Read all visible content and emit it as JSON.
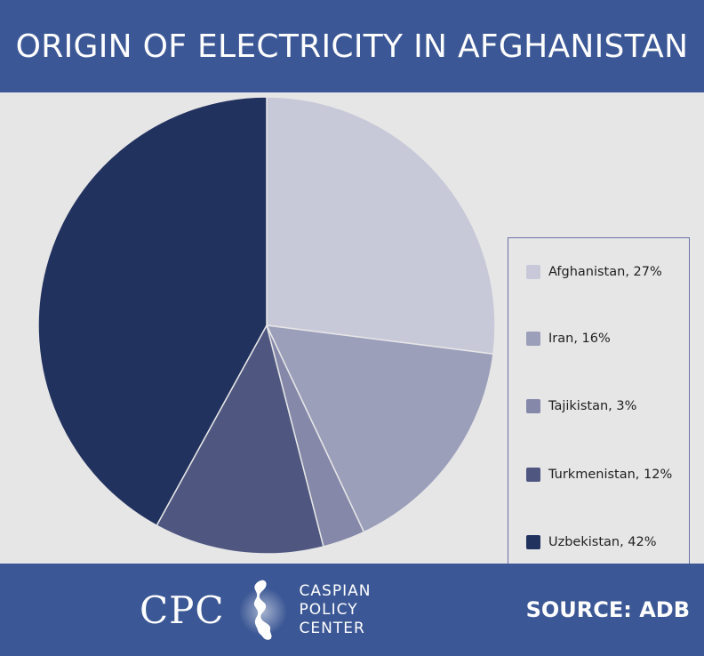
{
  "colors": {
    "header_bg": "#3b5795",
    "footer_bg": "#3b5795",
    "background": "#e6e6e7"
  },
  "header": {
    "title": "ORIGIN OF ELECTRICITY IN AFGHANISTAN"
  },
  "chart_data": {
    "type": "pie",
    "title": "ORIGIN OF ELECTRICITY IN AFGHANISTAN",
    "start_angle_deg": 0,
    "direction": "clockwise",
    "legend_position": "right",
    "slices": [
      {
        "label": "Afghanistan",
        "value": 27,
        "legend": "Afghanistan, 27%",
        "color": "#c8c9d8"
      },
      {
        "label": "Iran",
        "value": 16,
        "legend": "Iran, 16%",
        "color": "#9c9fba"
      },
      {
        "label": "Tajikistan",
        "value": 3,
        "legend": "Tajikistan, 3%",
        "color": "#8588a9"
      },
      {
        "label": "Turkmenistan",
        "value": 12,
        "legend": "Turkmenistan, 12%",
        "color": "#4f5780"
      },
      {
        "label": "Uzbekistan",
        "value": 42,
        "legend": "Uzbekistan, 42%",
        "color": "#22325e"
      }
    ]
  },
  "footer": {
    "logo_letters": "CPC",
    "org_line1": "CASPIAN",
    "org_line2": "POLICY",
    "org_line3": "CENTER",
    "source": "SOURCE: ADB",
    "logo_icon": "caspian-sea-map-icon"
  }
}
